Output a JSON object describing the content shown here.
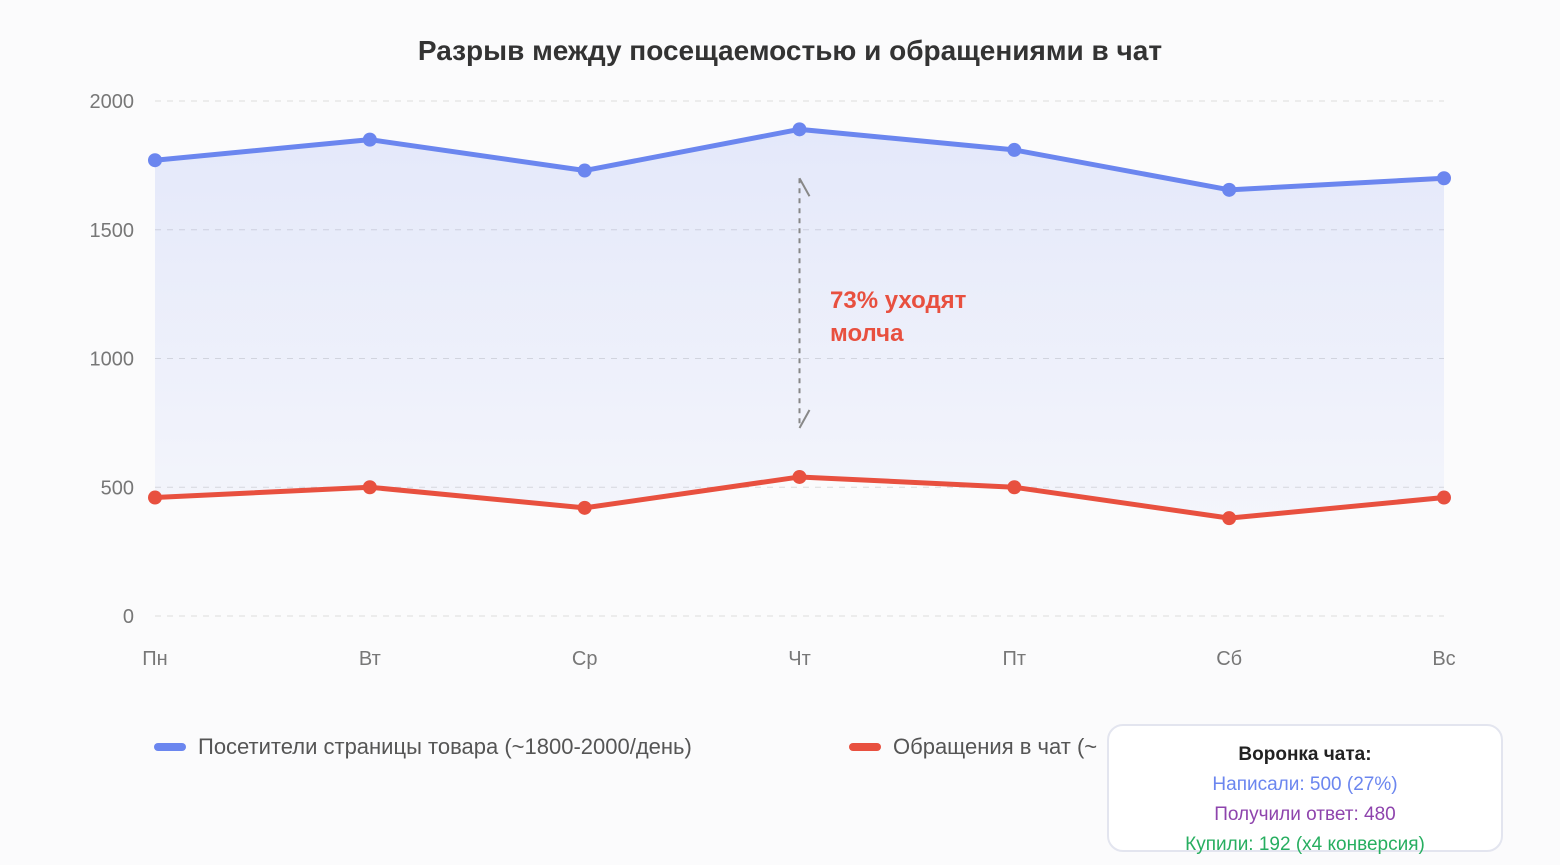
{
  "chart_data": {
    "type": "line",
    "title": "Разрыв между посещаемостью и обращениями в чат",
    "categories": [
      "Пн",
      "Вт",
      "Ср",
      "Чт",
      "Пт",
      "Сб",
      "Вс"
    ],
    "ylim": [
      0,
      2000
    ],
    "yticks": [
      0,
      500,
      1000,
      1500,
      2000
    ],
    "grid": true,
    "legend_position": "bottom",
    "series": [
      {
        "name": "Посетители страницы товара (~1800-2000/день)",
        "color": "#6b86ef",
        "values": [
          1770,
          1850,
          1730,
          1890,
          1810,
          1655,
          1700
        ]
      },
      {
        "name": "Обращения в чат (~",
        "color": "#e8503f",
        "values": [
          460,
          500,
          420,
          540,
          500,
          380,
          460
        ]
      }
    ],
    "annotation": {
      "line1": "73% уходят",
      "line2": "молча",
      "color": "#e8503f",
      "from": 1700,
      "to": 730,
      "category": "Чт"
    }
  },
  "funnel": {
    "title": "Воронка чата:",
    "lines": [
      {
        "text": "Написали: 500 (27%)",
        "color": "#6b86ef"
      },
      {
        "text": "Получили ответ: 480",
        "color": "#8e44ad"
      },
      {
        "text": "Купили: 192 (x4 конверсия)",
        "color": "#27ae60"
      }
    ]
  }
}
